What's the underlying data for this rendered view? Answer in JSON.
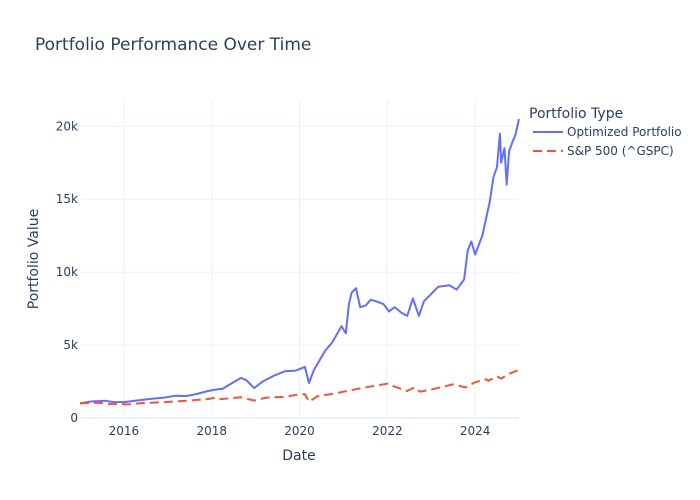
{
  "chart_data": {
    "type": "line",
    "title": "Portfolio Performance Over Time",
    "xlabel": "Date",
    "ylabel": "Portfolio Value",
    "xlim": [
      "2015-01-01",
      "2024-12-31"
    ],
    "ylim": [
      0,
      21800
    ],
    "grid": true,
    "x_ticks": [
      "2016",
      "2018",
      "2020",
      "2022",
      "2024"
    ],
    "y_ticks": [
      {
        "value": 0,
        "label": "0"
      },
      {
        "value": 5000,
        "label": "5k"
      },
      {
        "value": 10000,
        "label": "10k"
      },
      {
        "value": 15000,
        "label": "15k"
      },
      {
        "value": 20000,
        "label": "20k"
      }
    ],
    "legend": {
      "title": "Portfolio Type",
      "position": "top-right"
    },
    "series": [
      {
        "name": "Optimized Portfolio",
        "color": "#636efa",
        "dash": "solid",
        "points": [
          [
            "2015-01-01",
            1000
          ],
          [
            "2015-04-01",
            1130
          ],
          [
            "2015-08-01",
            1180
          ],
          [
            "2015-10-01",
            1100
          ],
          [
            "2016-01-01",
            1090
          ],
          [
            "2016-04-01",
            1180
          ],
          [
            "2016-08-01",
            1300
          ],
          [
            "2016-12-01",
            1400
          ],
          [
            "2017-03-01",
            1520
          ],
          [
            "2017-06-01",
            1500
          ],
          [
            "2017-09-01",
            1650
          ],
          [
            "2017-12-01",
            1850
          ],
          [
            "2018-02-01",
            1950
          ],
          [
            "2018-04-01",
            2000
          ],
          [
            "2018-06-01",
            2300
          ],
          [
            "2018-09-01",
            2750
          ],
          [
            "2018-10-15",
            2600
          ],
          [
            "2018-12-20",
            2050
          ],
          [
            "2019-03-01",
            2500
          ],
          [
            "2019-06-01",
            2900
          ],
          [
            "2019-09-01",
            3200
          ],
          [
            "2019-12-01",
            3250
          ],
          [
            "2020-02-15",
            3500
          ],
          [
            "2020-03-20",
            2400
          ],
          [
            "2020-05-01",
            3300
          ],
          [
            "2020-08-01",
            4600
          ],
          [
            "2020-10-01",
            5200
          ],
          [
            "2020-12-15",
            6300
          ],
          [
            "2021-01-20",
            5800
          ],
          [
            "2021-02-15",
            7800
          ],
          [
            "2021-03-10",
            8600
          ],
          [
            "2021-04-15",
            8900
          ],
          [
            "2021-05-20",
            7600
          ],
          [
            "2021-07-01",
            7700
          ],
          [
            "2021-08-15",
            8100
          ],
          [
            "2021-10-01",
            8000
          ],
          [
            "2021-12-01",
            7800
          ],
          [
            "2022-01-15",
            7300
          ],
          [
            "2022-03-01",
            7600
          ],
          [
            "2022-05-01",
            7200
          ],
          [
            "2022-06-15",
            7000
          ],
          [
            "2022-08-01",
            8200
          ],
          [
            "2022-09-20",
            7000
          ],
          [
            "2022-11-01",
            8000
          ],
          [
            "2023-01-01",
            8500
          ],
          [
            "2023-03-01",
            9000
          ],
          [
            "2023-06-01",
            9100
          ],
          [
            "2023-08-01",
            8800
          ],
          [
            "2023-10-01",
            9500
          ],
          [
            "2023-11-01",
            11500
          ],
          [
            "2023-12-01",
            12100
          ],
          [
            "2024-01-01",
            11200
          ],
          [
            "2024-03-01",
            12500
          ],
          [
            "2024-05-01",
            14800
          ],
          [
            "2024-06-01",
            16500
          ],
          [
            "2024-07-01",
            17200
          ],
          [
            "2024-07-25",
            19500
          ],
          [
            "2024-08-05",
            17500
          ],
          [
            "2024-09-01",
            18500
          ],
          [
            "2024-09-20",
            16000
          ],
          [
            "2024-10-10",
            18300
          ],
          [
            "2024-11-10",
            19000
          ],
          [
            "2024-12-01",
            19400
          ],
          [
            "2024-12-31",
            20500
          ]
        ]
      },
      {
        "name": "S&P 500 (^GSPC)",
        "color": "#ef553b",
        "dash": "dash",
        "points": [
          [
            "2015-01-01",
            1000
          ],
          [
            "2015-06-01",
            1050
          ],
          [
            "2015-09-01",
            960
          ],
          [
            "2016-02-01",
            930
          ],
          [
            "2016-06-01",
            1020
          ],
          [
            "2016-12-01",
            1080
          ],
          [
            "2017-06-01",
            1180
          ],
          [
            "2017-12-01",
            1300
          ],
          [
            "2018-01-25",
            1380
          ],
          [
            "2018-03-01",
            1280
          ],
          [
            "2018-09-01",
            1420
          ],
          [
            "2018-12-20",
            1200
          ],
          [
            "2019-04-01",
            1400
          ],
          [
            "2019-09-01",
            1450
          ],
          [
            "2019-12-01",
            1580
          ],
          [
            "2020-02-15",
            1640
          ],
          [
            "2020-03-20",
            1120
          ],
          [
            "2020-06-01",
            1500
          ],
          [
            "2020-10-01",
            1650
          ],
          [
            "2021-01-01",
            1800
          ],
          [
            "2021-06-01",
            2050
          ],
          [
            "2022-01-01",
            2350
          ],
          [
            "2022-03-01",
            2150
          ],
          [
            "2022-06-15",
            1850
          ],
          [
            "2022-08-15",
            2100
          ],
          [
            "2022-10-01",
            1800
          ],
          [
            "2023-01-01",
            1950
          ],
          [
            "2023-07-01",
            2300
          ],
          [
            "2023-10-15",
            2100
          ],
          [
            "2023-12-31",
            2450
          ],
          [
            "2024-04-01",
            2650
          ],
          [
            "2024-04-20",
            2550
          ],
          [
            "2024-07-01",
            2850
          ],
          [
            "2024-08-05",
            2700
          ],
          [
            "2024-10-01",
            3000
          ],
          [
            "2024-12-31",
            3300
          ]
        ]
      }
    ]
  }
}
